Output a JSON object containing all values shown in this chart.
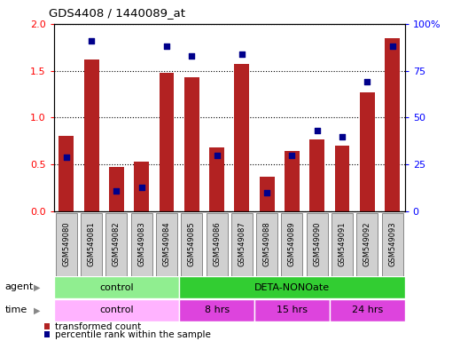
{
  "title": "GDS4408 / 1440089_at",
  "samples": [
    "GSM549080",
    "GSM549081",
    "GSM549082",
    "GSM549083",
    "GSM549084",
    "GSM549085",
    "GSM549086",
    "GSM549087",
    "GSM549088",
    "GSM549089",
    "GSM549090",
    "GSM549091",
    "GSM549092",
    "GSM549093"
  ],
  "red_values": [
    0.81,
    1.62,
    0.47,
    0.53,
    1.48,
    1.43,
    0.68,
    1.57,
    0.37,
    0.64,
    0.77,
    0.7,
    1.27,
    1.85
  ],
  "blue_pct": [
    29,
    91,
    11,
    13,
    88,
    83,
    30,
    84,
    10,
    30,
    43,
    40,
    69,
    88
  ],
  "ylim_left": [
    0,
    2
  ],
  "ylim_right": [
    0,
    100
  ],
  "yticks_left": [
    0,
    0.5,
    1.0,
    1.5,
    2.0
  ],
  "yticks_right": [
    0,
    25,
    50,
    75,
    100
  ],
  "ytick_labels_right": [
    "0",
    "25",
    "50",
    "75",
    "100%"
  ],
  "bar_color": "#b22222",
  "dot_color": "#00008b",
  "agent_control_color": "#90ee90",
  "agent_deta_color": "#32cd32",
  "time_control_color": "#ffb3ff",
  "time_deta_color": "#dd44dd",
  "agent_control_label": "control",
  "agent_deta_label": "DETA-NONOate",
  "time_control_label": "control",
  "time_8hrs_label": "8 hrs",
  "time_15hrs_label": "15 hrs",
  "time_24hrs_label": "24 hrs",
  "legend_red": "transformed count",
  "legend_blue": "percentile rank within the sample",
  "agent_label": "agent",
  "time_label": "time",
  "control_count": 5,
  "deta_8_count": 3,
  "deta_15_count": 3,
  "deta_24_count": 3,
  "tick_bg_color": "#d0d0d0",
  "tick_border_color": "#888888"
}
